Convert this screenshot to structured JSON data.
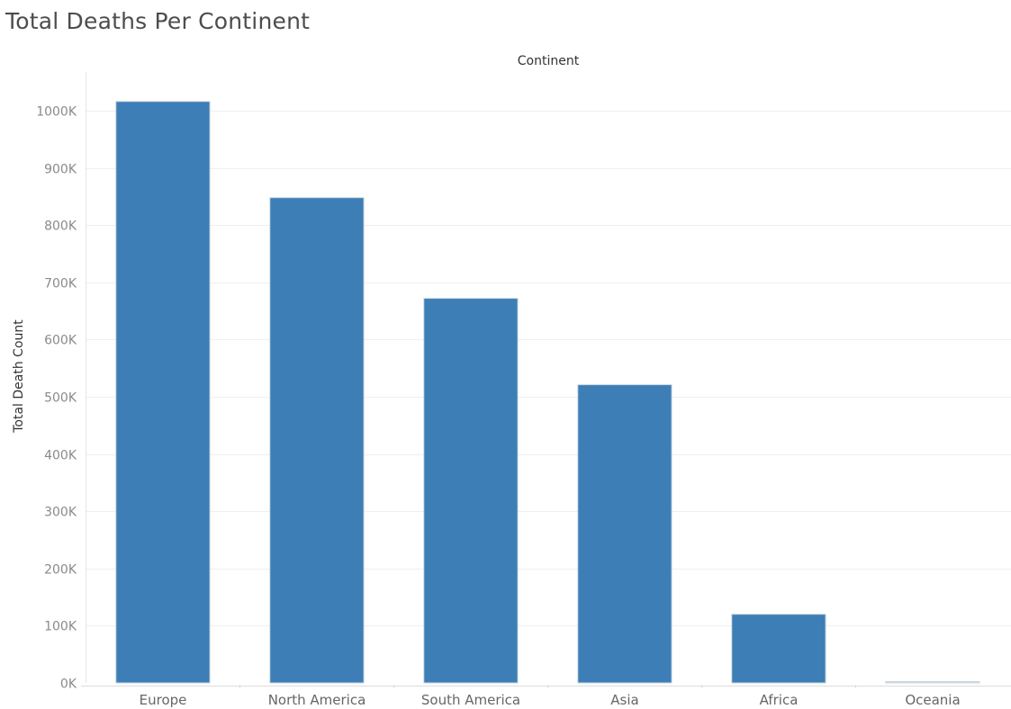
{
  "chart_data": {
    "type": "bar",
    "title": "Total Deaths Per Continent",
    "column_header": "Continent",
    "ylabel": "Total Death Count",
    "categories": [
      "Europe",
      "North America",
      "South America",
      "Asia",
      "Africa",
      "Oceania"
    ],
    "values": [
      1016000,
      848000,
      672000,
      521000,
      120000,
      2000
    ],
    "ylim": [
      0,
      1000000
    ],
    "y_ticks": [
      0,
      100000,
      200000,
      300000,
      400000,
      500000,
      600000,
      700000,
      800000,
      900000,
      1000000
    ],
    "y_tick_labels": [
      "0K",
      "100K",
      "200K",
      "300K",
      "400K",
      "500K",
      "600K",
      "700K",
      "800K",
      "900K",
      "1000K"
    ],
    "grid": true,
    "legend": "none",
    "bar_color": "#3d7eb6",
    "bar_border_color": "#c8d6e2"
  }
}
